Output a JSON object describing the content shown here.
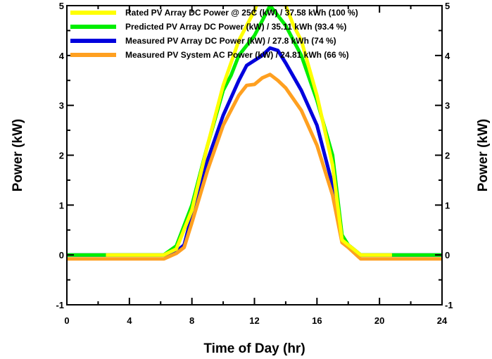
{
  "chart_data": {
    "type": "line",
    "xlabel": "Time of Day (hr)",
    "ylabel": "Power (kW)",
    "ylabel_right": "Power (kW)",
    "xlim": [
      0,
      24
    ],
    "ylim": [
      -1,
      5
    ],
    "x_ticks": [
      "0",
      "4",
      "8",
      "12",
      "16",
      "20",
      "24"
    ],
    "y_ticks": [
      "-1",
      "0",
      "1",
      "2",
      "3",
      "4",
      "5"
    ],
    "grid": false,
    "legend_position": "top-center",
    "series": [
      {
        "name": "Rated PV Array DC Power @ 25C (kW) / 37.58 kWh (100 %)",
        "color": "#ffff00",
        "x": [
          2.5,
          6.2,
          7.0,
          8.0,
          9.0,
          10.0,
          11.0,
          12.0,
          12.5,
          13.0,
          13.5,
          14.0,
          14.5,
          15.0,
          16.0,
          17.0,
          17.6,
          18.0,
          18.8,
          20.8
        ],
        "y": [
          0.0,
          0.0,
          0.12,
          0.9,
          2.2,
          3.4,
          4.3,
          4.9,
          5.3,
          5.6,
          5.4,
          5.0,
          4.6,
          4.3,
          3.2,
          1.8,
          0.3,
          0.2,
          0.0,
          0.0
        ]
      },
      {
        "name": "Predicted PV Array DC Power (kW) / 35.11 kWh (93.4 %)",
        "color": "#00ee00",
        "x": [
          0,
          6.2,
          7.0,
          8.0,
          9.0,
          10.0,
          10.5,
          11.0,
          11.5,
          12.0,
          12.5,
          13.0,
          13.5,
          14.0,
          15.0,
          16.0,
          17.0,
          17.6,
          18.0,
          18.8,
          24
        ],
        "y": [
          0.0,
          0.0,
          0.18,
          1.0,
          2.2,
          3.3,
          3.6,
          4.0,
          4.2,
          4.4,
          4.7,
          5.0,
          4.8,
          4.6,
          4.0,
          3.1,
          2.0,
          0.4,
          0.2,
          0.0,
          0.0
        ]
      },
      {
        "name": "Measured PV Array DC Power (kW) / 27.8 kWh (74 %)",
        "color": "#0000dd",
        "x": [
          0,
          6.3,
          7.0,
          7.5,
          8.0,
          9.0,
          10.0,
          11.0,
          11.5,
          12.0,
          12.5,
          13.0,
          13.5,
          14.0,
          15.0,
          16.0,
          17.0,
          17.6,
          18.0,
          18.8,
          24
        ],
        "y": [
          0.0,
          0.0,
          0.07,
          0.2,
          0.8,
          1.9,
          2.8,
          3.5,
          3.8,
          3.9,
          4.0,
          4.15,
          4.1,
          3.85,
          3.3,
          2.6,
          1.4,
          0.3,
          0.2,
          0.0,
          0.0
        ]
      },
      {
        "name": "Measured PV System AC Power (kW) / 24.81 kWh (66 %)",
        "color": "#ffa020",
        "x": [
          0,
          6.2,
          7.0,
          7.5,
          8.0,
          9.0,
          10.0,
          11.0,
          11.5,
          12.0,
          12.5,
          13.0,
          13.5,
          14.0,
          15.0,
          16.0,
          17.0,
          17.6,
          18.0,
          18.8,
          24
        ],
        "y": [
          -0.08,
          -0.08,
          0.03,
          0.15,
          0.65,
          1.7,
          2.6,
          3.2,
          3.4,
          3.42,
          3.55,
          3.62,
          3.5,
          3.35,
          2.9,
          2.2,
          1.2,
          0.25,
          0.15,
          -0.08,
          -0.08
        ]
      }
    ]
  }
}
